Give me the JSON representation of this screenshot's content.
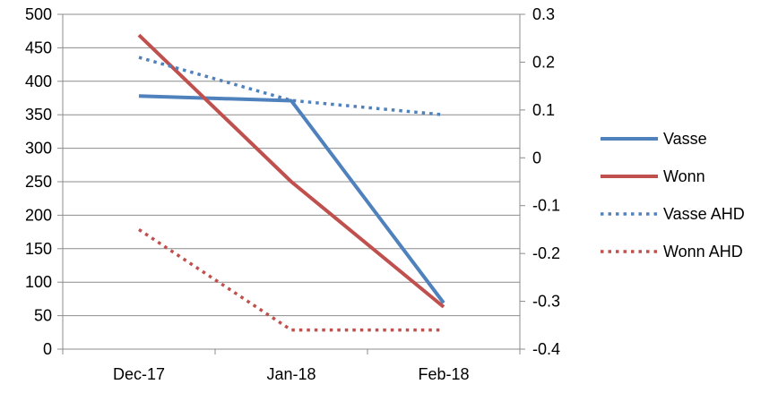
{
  "chart_data": {
    "type": "line",
    "title": "",
    "categories": [
      "Dec-17",
      "Jan-18",
      "Feb-18"
    ],
    "y_left": {
      "min": 0,
      "max": 500,
      "step": 50,
      "ticks": [
        "0",
        "50",
        "100",
        "150",
        "200",
        "250",
        "300",
        "350",
        "400",
        "450",
        "500"
      ]
    },
    "y_right": {
      "min": -0.4,
      "max": 0.3,
      "step": 0.1,
      "ticks": [
        "-0.4",
        "-0.3",
        "-0.2",
        "-0.1",
        "0",
        "0.1",
        "0.2",
        "0.3"
      ]
    },
    "grid": true,
    "legend_position": "right",
    "series": [
      {
        "name": "Vasse",
        "axis": "left",
        "values": [
          378,
          371,
          69
        ],
        "color": "#4f81bd",
        "dash": "solid"
      },
      {
        "name": "Wonn",
        "axis": "left",
        "values": [
          469,
          250,
          63
        ],
        "color": "#c0504d",
        "dash": "solid"
      },
      {
        "name": "Vasse AHD",
        "axis": "right",
        "values": [
          0.21,
          0.12,
          0.09
        ],
        "color": "#4f81bd",
        "dash": "dotted"
      },
      {
        "name": "Wonn AHD",
        "axis": "right",
        "values": [
          -0.15,
          -0.36,
          -0.36
        ],
        "color": "#c0504d",
        "dash": "dotted"
      }
    ]
  }
}
